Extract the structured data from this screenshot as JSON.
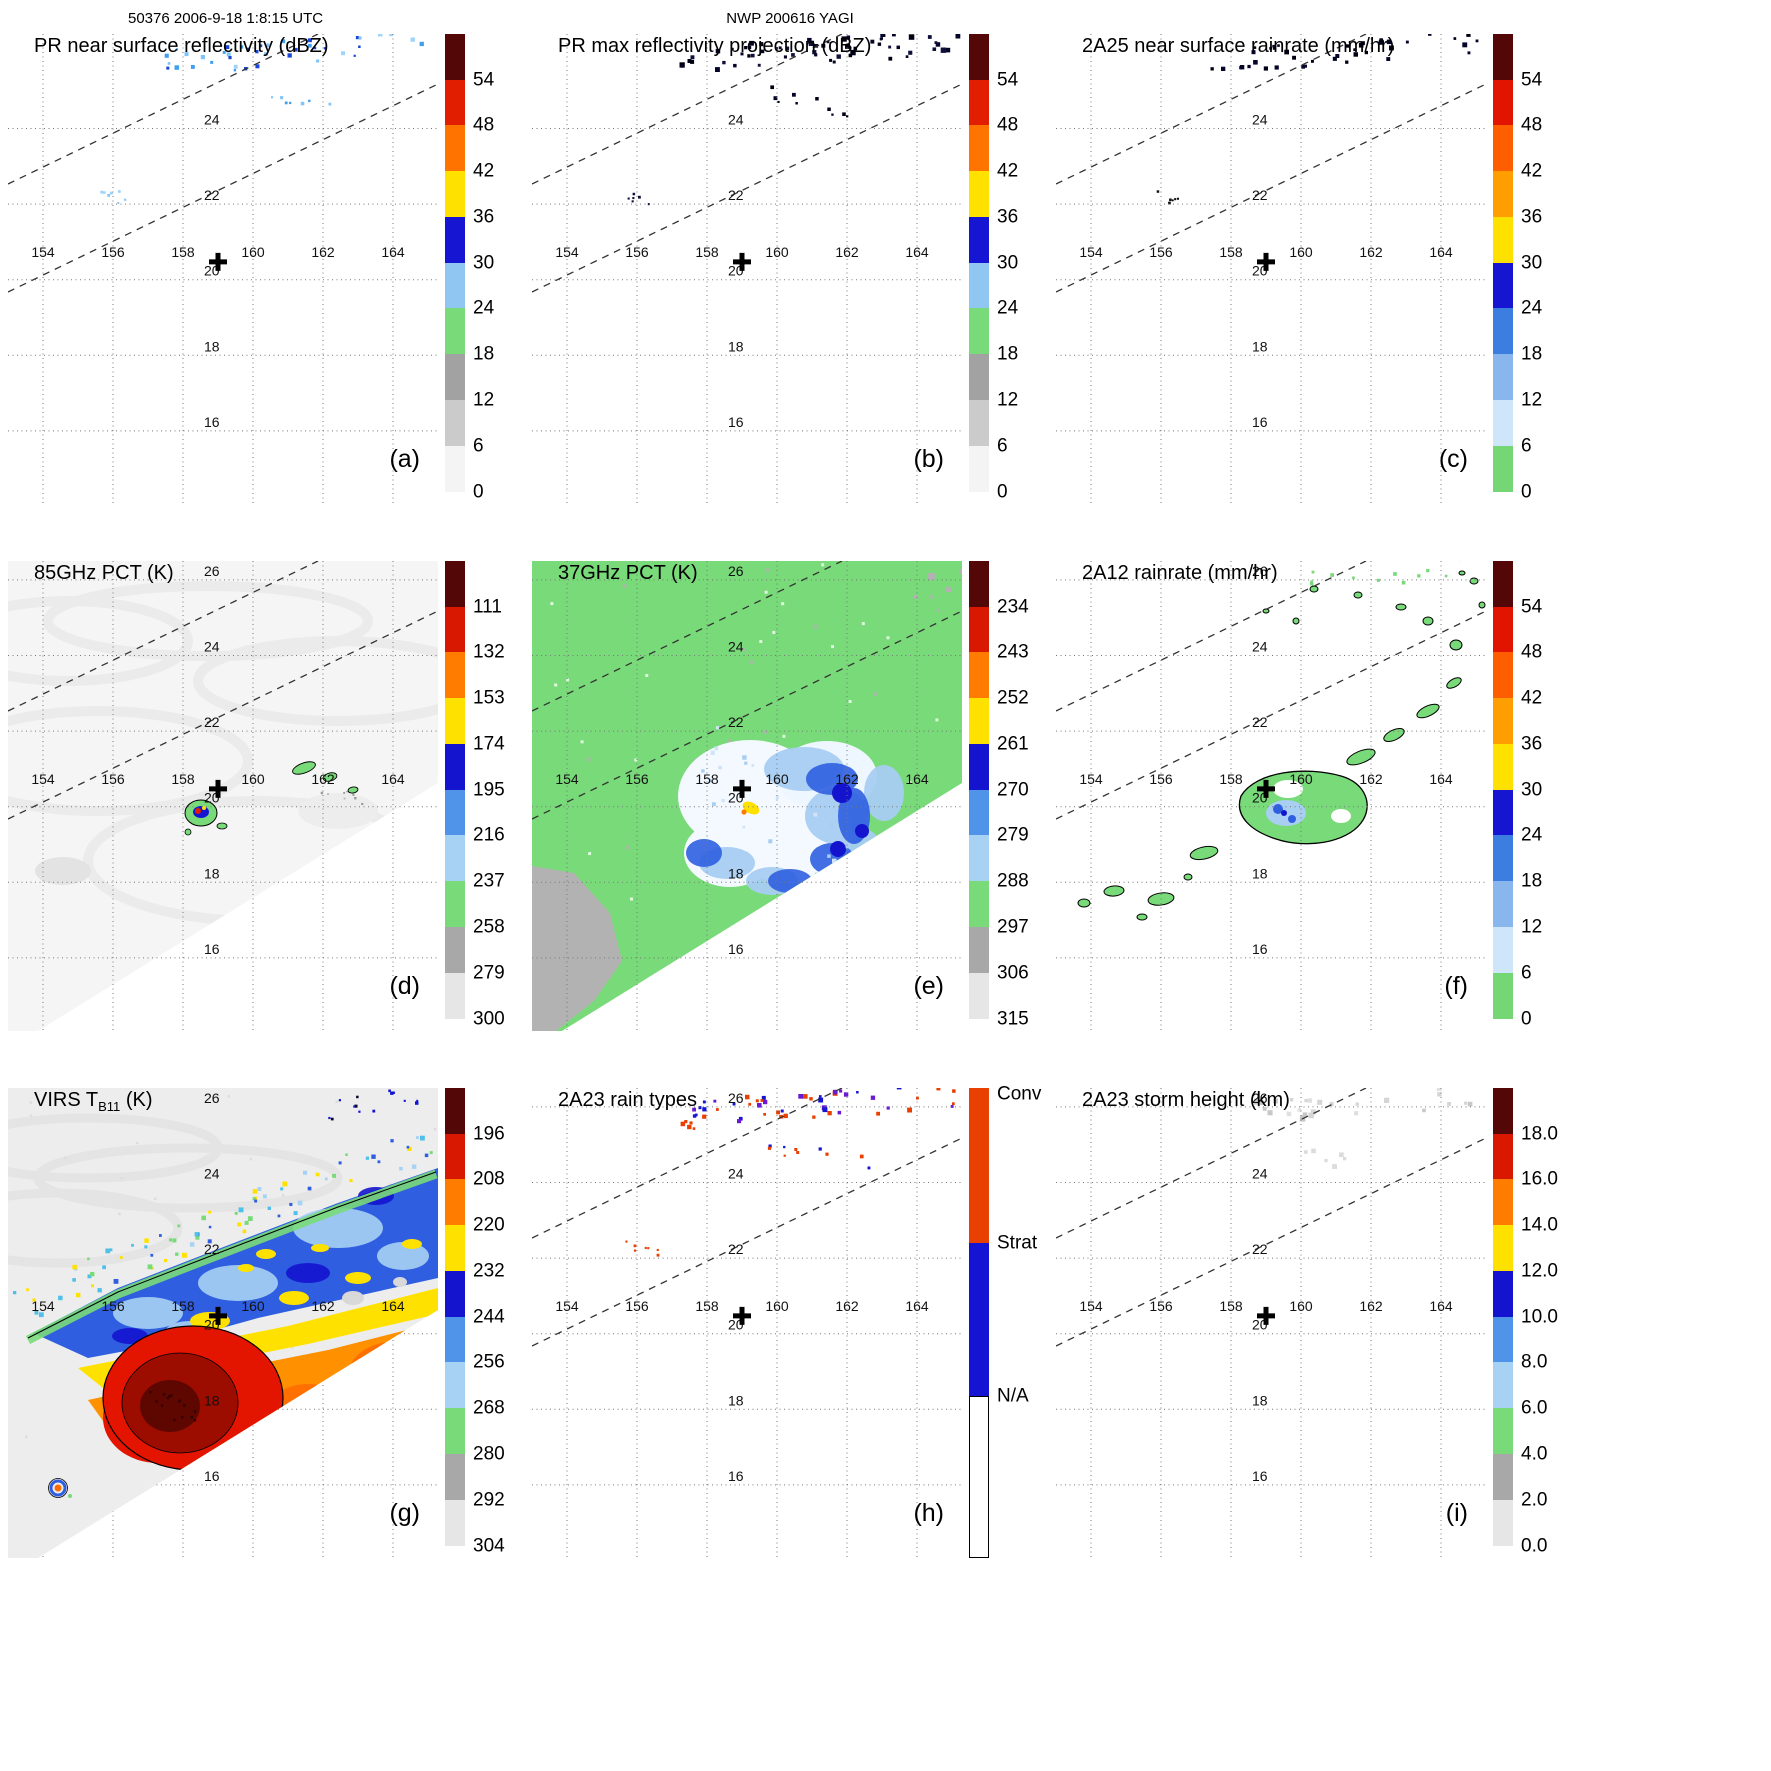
{
  "header": {
    "left": "50376 2006-9-18 1:8:15 UTC",
    "center": "NWP 200616 YAGI"
  },
  "map": {
    "lon_ticks": [
      "154",
      "156",
      "158",
      "160",
      "162",
      "164"
    ],
    "lat_ticks": [
      "26",
      "24",
      "22",
      "20",
      "18",
      "16"
    ],
    "storm_center": {
      "lon": 159.0,
      "lat": 20.47
    }
  },
  "palettes": {
    "reflectivity": [
      "#530707",
      "#e11e00",
      "#ff7300",
      "#ffe100",
      "#1616d2",
      "#8fc6f2",
      "#79da79",
      "#a2a2a2",
      "#cbcbcb",
      "#f4f4f4",
      "#ffffff"
    ],
    "rainrate": [
      "#530707",
      "#e11400",
      "#ff5e00",
      "#ff9e00",
      "#ffe100",
      "#1616d2",
      "#3c7de0",
      "#8ab6ee",
      "#cfe6fa",
      "#74d674",
      "#ffffff"
    ],
    "pct": [
      "#530707",
      "#d81800",
      "#ff7c00",
      "#ffe100",
      "#1414cf",
      "#4f94e8",
      "#a8d2f4",
      "#79da79",
      "#a8a8a8",
      "#e6e6e6",
      "#ffffff"
    ]
  },
  "panels": [
    {
      "id": "a",
      "letter": "(a)",
      "title": "PR near surface reflectivity (dBZ)",
      "colorbar": {
        "type": "scale",
        "palette": "reflectivity",
        "ticks": [
          "54",
          "48",
          "42",
          "36",
          "30",
          "24",
          "18",
          "12",
          "6",
          "0"
        ]
      }
    },
    {
      "id": "b",
      "letter": "(b)",
      "title": "PR max reflectivity projection (dBZ)",
      "colorbar": {
        "type": "scale",
        "palette": "reflectivity",
        "ticks": [
          "54",
          "48",
          "42",
          "36",
          "30",
          "24",
          "18",
          "12",
          "6",
          "0"
        ]
      }
    },
    {
      "id": "c",
      "letter": "(c)",
      "title": "2A25 near surface rainrate (mm/hr)",
      "colorbar": {
        "type": "scale",
        "palette": "rainrate",
        "ticks": [
          "54",
          "48",
          "42",
          "36",
          "30",
          "24",
          "18",
          "12",
          "6",
          "0"
        ]
      }
    },
    {
      "id": "d",
      "letter": "(d)",
      "title": "85GHz PCT (K)",
      "colorbar": {
        "type": "scale",
        "palette": "pct",
        "ticks": [
          "111",
          "132",
          "153",
          "174",
          "195",
          "216",
          "237",
          "258",
          "279",
          "300"
        ]
      }
    },
    {
      "id": "e",
      "letter": "(e)",
      "title": "37GHz PCT (K)",
      "colorbar": {
        "type": "scale",
        "palette": "pct",
        "ticks": [
          "234",
          "243",
          "252",
          "261",
          "270",
          "279",
          "288",
          "297",
          "306",
          "315"
        ]
      }
    },
    {
      "id": "f",
      "letter": "(f)",
      "title": "2A12 rainrate (mm/hr)",
      "colorbar": {
        "type": "scale",
        "palette": "rainrate",
        "ticks": [
          "54",
          "48",
          "42",
          "36",
          "30",
          "24",
          "18",
          "12",
          "6",
          "0"
        ]
      }
    },
    {
      "id": "g",
      "letter": "(g)",
      "title": "VIRS T",
      "title_sub": "B11",
      "title_end": " (K)",
      "colorbar": {
        "type": "scale",
        "palette": "pct",
        "ticks": [
          "196",
          "208",
          "220",
          "232",
          "244",
          "256",
          "268",
          "280",
          "292",
          "304"
        ]
      }
    },
    {
      "id": "h",
      "letter": "(h)",
      "title": "2A23 rain types",
      "colorbar": {
        "type": "categorical",
        "colors": [
          "#e84000",
          "#1414d2",
          "#ffffff"
        ],
        "ticks": [
          "Conv",
          "Strat",
          "N/A"
        ]
      }
    },
    {
      "id": "i",
      "letter": "(i)",
      "title": "2A23 storm height (km)",
      "colorbar": {
        "type": "scale",
        "palette": "pct",
        "ticks": [
          "18.0",
          "16.0",
          "14.0",
          "12.0",
          "10.0",
          "8.0",
          "6.0",
          "4.0",
          "2.0",
          "0.0"
        ]
      }
    }
  ],
  "chart_data": {
    "type": "heatmap",
    "title": "NWP 200616 YAGI - TRMM overpass 50376, 2006-9-18 1:8:15 UTC",
    "layout": "3x3 grid of geographic map panels, each with its own vertical colorbar on the right",
    "geo": {
      "lon_gridlines": [
        154,
        156,
        158,
        160,
        162,
        164
      ],
      "lat_gridlines": [
        16,
        18,
        20,
        22,
        24,
        26
      ],
      "lon_range": [
        153.0,
        165.3
      ],
      "lat_range": [
        14.1,
        26.5
      ],
      "storm_center": {
        "lon": 159.0,
        "lat": 20.5
      },
      "annotations": "bold plus sign at storm center in every panel; two parallel dashed SW-NE diagonal lines marking the PR swath edges"
    },
    "panels": [
      {
        "label": "(a)",
        "title": "PR near surface reflectivity (dBZ)",
        "units": "dBZ",
        "colorbar_ticks": [
          54,
          48,
          42,
          36,
          30,
          24,
          18,
          12,
          6,
          0
        ],
        "depicted": "sparse light-blue echo speckles (about 24-33 dBZ) along the NE swath edge near 24-26.5N, 157-165E; tiny cluster near 155.5E 22.3N"
      },
      {
        "label": "(b)",
        "title": "PR max reflectivity projection (dBZ)",
        "units": "dBZ",
        "colorbar_ticks": [
          54,
          48,
          42,
          36,
          30,
          24,
          18,
          12,
          6,
          0
        ],
        "depicted": "dark (high dBZ) echo clusters near 24-26.5N along swath edge; small cluster near 155.5E 22.3N"
      },
      {
        "label": "(c)",
        "title": "2A25 near surface rainrate (mm/hr)",
        "units": "mm/hr",
        "colorbar_ticks": [
          54,
          48,
          42,
          36,
          30,
          24,
          18,
          12,
          6,
          0
        ],
        "depicted": "sparse dark rain pixels near 24-26.5N along swath edge"
      },
      {
        "label": "(d)",
        "title": "85GHz PCT (K)",
        "units": "K",
        "colorbar_ticks": [
          111,
          132,
          153,
          174,
          195,
          216,
          237,
          258,
          279,
          300
        ],
        "depicted": "background about 290-300 K across TMI swath; small depressed-PCT convective core (about 150-240 K ring) near 158.6E 20.6N; small 237-258 K green cells near 161-162E 21.5N"
      },
      {
        "label": "(e)",
        "title": "37GHz PCT (K)",
        "units": "K",
        "colorbar_ticks": [
          234,
          243,
          252,
          261,
          270,
          279,
          288,
          297,
          306,
          315
        ],
        "depicted": "green background about 288-297 K; white/light-blue cool region (270-288 K) around storm center with blue 261-270 K band; small yellow arc about 252-261 K at 158.8E 20.5N; gray 297-306 K patches at SW corner"
      },
      {
        "label": "(f)",
        "title": "2A12 rainrate (mm/hr)",
        "units": "mm/hr",
        "colorbar_ticks": [
          54,
          48,
          42,
          36,
          30,
          24,
          18,
          12,
          6,
          0
        ],
        "depicted": "black-outlined green light-rain (0-6 mm/hr) patches arcing around center and NE; light-blue/blue 12-24 mm/hr spot just SE of storm center"
      },
      {
        "label": "(g)",
        "title": "VIRS TB11 (K)",
        "units": "K",
        "colorbar_ticks": [
          196,
          208,
          220,
          232,
          244,
          256,
          268,
          280,
          292,
          304
        ],
        "depicted": "large cold cloud shield: blue 232-256 K band N and E, yellow/orange 208-232 K ring, red below 208 K and dark-red coldest core (below 196 K) centered near 158E 20.3N; warm gray sea surface NW and SW; black TB contours"
      },
      {
        "label": "(h)",
        "title": "2A23 rain types",
        "categories": [
          "Conv",
          "Strat",
          "N/A"
        ],
        "depicted": "mixed convective (orange-red) and stratiform (blue) pixels near 24-26.5N along swath edge; a few convective pixels near 155.5E 22.3N"
      },
      {
        "label": "(i)",
        "title": "2A23 storm height (km)",
        "units": "km",
        "colorbar_ticks": [
          18.0,
          16.0,
          14.0,
          12.0,
          10.0,
          8.0,
          6.0,
          4.0,
          2.0,
          0.0
        ],
        "depicted": "very faint light-gray low storm heights near 24-26.5N along swath edge"
      }
    ]
  }
}
